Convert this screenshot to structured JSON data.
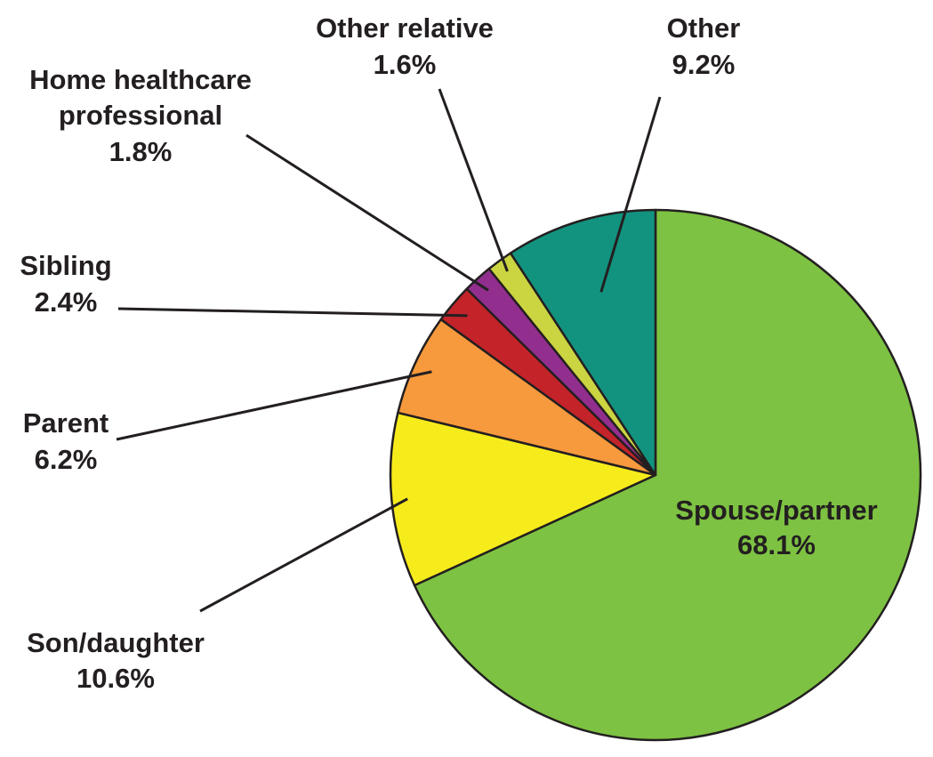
{
  "chart_data": {
    "type": "pie",
    "title": "",
    "start_angle_deg": 0,
    "direction": "clockwise",
    "slices": [
      {
        "label": "Spouse/partner",
        "value": 68.1,
        "display": "68.1%",
        "color": "#7dc242"
      },
      {
        "label": "Son/daughter",
        "value": 10.6,
        "display": "10.6%",
        "color": "#f7ec1b"
      },
      {
        "label": "Parent",
        "value": 6.2,
        "display": "6.2%",
        "color": "#f7993d"
      },
      {
        "label": "Sibling",
        "value": 2.4,
        "display": "2.4%",
        "color": "#c4232a"
      },
      {
        "label": "Home healthcare professional",
        "value": 1.8,
        "display": "1.8%",
        "color": "#922f8e"
      },
      {
        "label": "Other relative",
        "value": 1.6,
        "display": "1.6%",
        "color": "#cbd441"
      },
      {
        "label": "Other",
        "value": 9.2,
        "display": "9.2%",
        "color": "#12937f"
      }
    ]
  }
}
